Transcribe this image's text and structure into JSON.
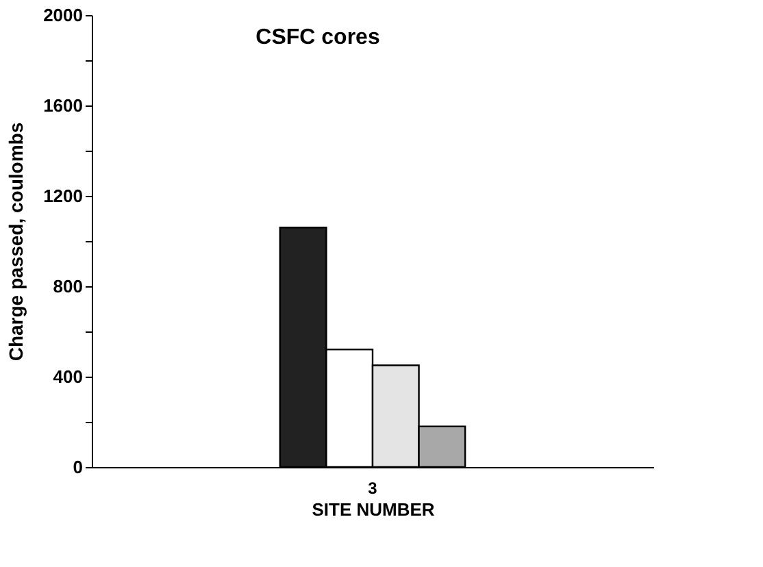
{
  "chart_data": {
    "type": "bar",
    "title": "CSFC cores",
    "xlabel": "SITE NUMBER",
    "ylabel": "Charge passed, coulombs",
    "categories": [
      "3"
    ],
    "series": [
      {
        "color": "#222222",
        "values": [
          1060
        ]
      },
      {
        "color": "#ffffff",
        "values": [
          520
        ]
      },
      {
        "color": "#e4e4e4",
        "values": [
          450
        ]
      },
      {
        "color": "#a8a8a8",
        "values": [
          180
        ]
      }
    ],
    "ylim": [
      0,
      2000
    ],
    "yticks": [
      0,
      {
        "value": 200,
        "label": null
      },
      400,
      {
        "value": 600,
        "label": null
      },
      800,
      {
        "value": 1000,
        "label": null
      },
      1200,
      {
        "value": 1400,
        "label": null
      },
      1600,
      {
        "value": 1800,
        "label": null
      },
      2000
    ],
    "grid": false
  }
}
